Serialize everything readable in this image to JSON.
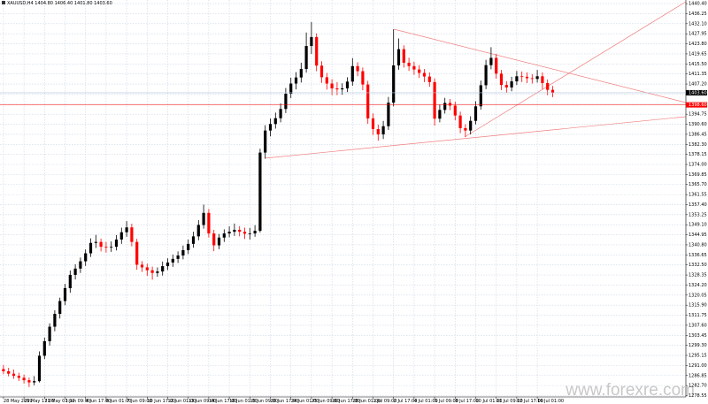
{
  "header": "XAUUSD,H4 1404.80 1406.40 1401.80 1403.60",
  "watermark": "www.forexre.com",
  "chart_data": {
    "type": "candlestick",
    "up_color": "#000000",
    "down_color": "#ff0000",
    "grid": true,
    "ylim": [
      1278.0,
      1441.9
    ],
    "yticks": [
      {
        "value": 1440.4,
        "label": "1440.40"
      },
      1436.25,
      {
        "value": 1432.1,
        "label": "1432.10"
      },
      1427.95,
      {
        "value": 1423.8,
        "label": "1423.80"
      },
      1419.65,
      {
        "value": 1415.5,
        "label": "1415.50"
      },
      1411.35,
      {
        "value": 1407.2,
        "label": "1407.20"
      },
      1403.05,
      {
        "value": 1398.9,
        "label": "1398.90"
      },
      1394.75,
      {
        "value": 1390.6,
        "label": "1390.60"
      },
      1386.45,
      {
        "value": 1382.3,
        "label": "1382.30"
      },
      1378.15,
      {
        "value": 1374,
        "label": "1374.00"
      },
      1369.85,
      {
        "value": 1365.7,
        "label": "1365.70"
      },
      1361.55,
      {
        "value": 1357.4,
        "label": "1357.40"
      },
      1353.25,
      {
        "value": 1349.1,
        "label": "1349.10"
      },
      1344.95,
      {
        "value": 1340.8,
        "label": "1340.80"
      },
      1336.65,
      {
        "value": 1332.5,
        "label": "1332.50"
      },
      1328.35,
      {
        "value": 1324.2,
        "label": "1324.20"
      },
      1320.05,
      {
        "value": 1315.9,
        "label": "1315.90"
      },
      1311.75,
      {
        "value": 1307.6,
        "label": "1307.60"
      },
      1303.45,
      {
        "value": 1299.3,
        "label": "1299.30"
      },
      1295.15,
      {
        "value": 1291,
        "label": "1291.00"
      },
      1286.85,
      {
        "value": 1282.7,
        "label": "1282.70"
      },
      1278.55
    ],
    "current_price": {
      "value": 1403.6,
      "label": "1403.60"
    },
    "level": {
      "value": 1398.6,
      "label": "1398.60"
    },
    "categories": [
      "28 May 2019",
      null,
      null,
      null,
      "29 May 17:00",
      null,
      null,
      null,
      "31 May 01:00",
      null,
      null,
      null,
      "3 Jun 09:00",
      null,
      null,
      null,
      "4 Jun 17:00",
      null,
      null,
      null,
      "6 Jun 01:00",
      null,
      null,
      null,
      "7 Jun 09:00",
      null,
      null,
      null,
      "10 Jun 17:00",
      null,
      null,
      null,
      "12 Jun 01:00",
      null,
      null,
      null,
      "13 Jun 09:00",
      null,
      null,
      null,
      "14 Jun 17:00",
      null,
      null,
      null,
      "18 Jun 01:00",
      null,
      null,
      null,
      "19 Jun 09:00",
      null,
      null,
      null,
      "20 Jun 17:00",
      null,
      null,
      null,
      "24 Jun 01:00",
      null,
      null,
      null,
      "25 Jun 09:00",
      null,
      null,
      null,
      "26 Jun 17:00",
      null,
      null,
      null,
      "28 Jun 01:00",
      null,
      null,
      null,
      "1 Jul 09:00",
      null,
      null,
      null,
      "2 Jul 17:00",
      null,
      null,
      null,
      "4 Jul 01:00",
      null,
      null,
      null,
      "5 Jul 09:00",
      null,
      null,
      null,
      "8 Jul 17:00",
      null,
      null,
      null,
      "10 Jul 01:00",
      null,
      null,
      null,
      "11 Jul 09:00",
      null,
      null,
      null,
      "12 Jul 17:00",
      null,
      null,
      null,
      "16 Jul 01:00",
      null,
      null,
      null
    ],
    "ohlc": [
      [
        1289.5,
        1291.2,
        1287.4,
        1288.6
      ],
      [
        1288.6,
        1290.0,
        1286.5,
        1287.6
      ],
      [
        1287.6,
        1289.3,
        1285.5,
        1286.7
      ],
      [
        1286.7,
        1288.0,
        1284.6,
        1285.9
      ],
      [
        1285.9,
        1287.2,
        1283.5,
        1284.9
      ],
      [
        1284.9,
        1286.0,
        1282.1,
        1284.0
      ],
      [
        1284.0,
        1286.6,
        1282.8,
        1284.5
      ],
      [
        1284.5,
        1296.8,
        1284.0,
        1295.0
      ],
      [
        1295.0,
        1302.5,
        1293.6,
        1301.0
      ],
      [
        1301.0,
        1308.4,
        1299.2,
        1307.0
      ],
      [
        1307.0,
        1313.8,
        1305.1,
        1312.3
      ],
      [
        1312.3,
        1319.0,
        1310.4,
        1317.6
      ],
      [
        1317.6,
        1324.7,
        1315.9,
        1322.9
      ],
      [
        1322.9,
        1330.2,
        1321.0,
        1328.4
      ],
      [
        1328.4,
        1332.8,
        1326.5,
        1331.0
      ],
      [
        1331.0,
        1335.6,
        1329.2,
        1334.0
      ],
      [
        1334.0,
        1338.9,
        1332.1,
        1337.3
      ],
      [
        1337.3,
        1343.5,
        1335.8,
        1341.6
      ],
      [
        1341.6,
        1344.9,
        1339.5,
        1342.0
      ],
      [
        1342.0,
        1343.4,
        1338.1,
        1340.0
      ],
      [
        1340.0,
        1342.0,
        1337.6,
        1339.7
      ],
      [
        1339.7,
        1342.2,
        1337.9,
        1340.0
      ],
      [
        1340.0,
        1344.8,
        1338.5,
        1343.0
      ],
      [
        1343.0,
        1347.9,
        1341.2,
        1346.0
      ],
      [
        1346.0,
        1350.6,
        1344.1,
        1348.0
      ],
      [
        1348.0,
        1349.5,
        1340.2,
        1342.0
      ],
      [
        1342.0,
        1343.3,
        1330.5,
        1332.6
      ],
      [
        1332.6,
        1334.1,
        1329.6,
        1331.5
      ],
      [
        1331.5,
        1333.0,
        1328.0,
        1330.3
      ],
      [
        1330.3,
        1331.8,
        1326.4,
        1329.2
      ],
      [
        1329.2,
        1331.5,
        1327.6,
        1329.8
      ],
      [
        1329.8,
        1333.9,
        1328.1,
        1332.0
      ],
      [
        1332.0,
        1335.2,
        1330.4,
        1333.5
      ],
      [
        1333.5,
        1336.8,
        1331.7,
        1335.0
      ],
      [
        1335.0,
        1338.1,
        1333.3,
        1336.4
      ],
      [
        1336.4,
        1340.5,
        1334.8,
        1338.6
      ],
      [
        1338.6,
        1343.0,
        1337.0,
        1341.2
      ],
      [
        1341.2,
        1346.2,
        1339.6,
        1344.3
      ],
      [
        1344.3,
        1351.0,
        1342.7,
        1349.0
      ],
      [
        1349.0,
        1357.4,
        1347.5,
        1354.0
      ],
      [
        1354.0,
        1355.6,
        1343.8,
        1345.5
      ],
      [
        1345.5,
        1347.0,
        1338.2,
        1340.6
      ],
      [
        1340.6,
        1345.3,
        1339.0,
        1343.8
      ],
      [
        1343.8,
        1347.2,
        1342.0,
        1345.5
      ],
      [
        1345.5,
        1348.4,
        1343.9,
        1346.2
      ],
      [
        1346.2,
        1349.6,
        1344.5,
        1347.0
      ],
      [
        1347.0,
        1348.5,
        1344.3,
        1346.2
      ],
      [
        1346.2,
        1347.9,
        1343.2,
        1345.4
      ],
      [
        1345.4,
        1347.8,
        1343.0,
        1345.5
      ],
      [
        1345.5,
        1348.9,
        1344.1,
        1346.6
      ],
      [
        1346.6,
        1380.5,
        1345.9,
        1378.9
      ],
      [
        1378.9,
        1390.2,
        1376.4,
        1388.0
      ],
      [
        1388.0,
        1393.0,
        1385.6,
        1390.7
      ],
      [
        1390.7,
        1395.4,
        1388.8,
        1393.1
      ],
      [
        1393.1,
        1399.2,
        1391.4,
        1396.9
      ],
      [
        1396.9,
        1405.6,
        1395.2,
        1403.2
      ],
      [
        1403.2,
        1409.8,
        1401.4,
        1407.4
      ],
      [
        1407.4,
        1412.1,
        1405.0,
        1409.9
      ],
      [
        1409.9,
        1416.0,
        1407.8,
        1413.4
      ],
      [
        1413.4,
        1428.5,
        1411.9,
        1422.9
      ],
      [
        1422.9,
        1432.8,
        1419.6,
        1426.6
      ],
      [
        1426.6,
        1428.1,
        1412.5,
        1414.8
      ],
      [
        1414.8,
        1416.6,
        1407.7,
        1410.0
      ],
      [
        1410.0,
        1411.8,
        1404.9,
        1407.4
      ],
      [
        1407.4,
        1409.2,
        1402.6,
        1405.4
      ],
      [
        1405.4,
        1408.0,
        1402.6,
        1405.0
      ],
      [
        1405.0,
        1407.5,
        1402.8,
        1405.4
      ],
      [
        1405.4,
        1410.0,
        1403.9,
        1408.2
      ],
      [
        1408.2,
        1417.9,
        1406.5,
        1414.6
      ],
      [
        1414.6,
        1416.2,
        1410.4,
        1412.5
      ],
      [
        1412.5,
        1414.0,
        1404.6,
        1407.0
      ],
      [
        1407.0,
        1408.5,
        1390.8,
        1393.0
      ],
      [
        1393.0,
        1395.1,
        1386.2,
        1388.6
      ],
      [
        1388.6,
        1390.4,
        1383.8,
        1386.4
      ],
      [
        1386.4,
        1392.0,
        1384.5,
        1389.8
      ],
      [
        1389.8,
        1401.9,
        1388.3,
        1399.5
      ],
      [
        1399.5,
        1429.8,
        1398.0,
        1414.9
      ],
      [
        1414.9,
        1426.0,
        1413.1,
        1421.6
      ],
      [
        1421.6,
        1423.2,
        1414.0,
        1416.0
      ],
      [
        1416.0,
        1418.1,
        1412.6,
        1414.6
      ],
      [
        1414.6,
        1416.4,
        1411.0,
        1413.2
      ],
      [
        1413.2,
        1415.0,
        1409.7,
        1411.8
      ],
      [
        1411.8,
        1413.4,
        1408.0,
        1410.3
      ],
      [
        1410.3,
        1412.0,
        1406.1,
        1408.0
      ],
      [
        1408.0,
        1409.5,
        1390.0,
        1392.9
      ],
      [
        1392.9,
        1398.8,
        1391.4,
        1396.5
      ],
      [
        1396.5,
        1401.5,
        1395.0,
        1399.4
      ],
      [
        1399.4,
        1401.0,
        1396.4,
        1398.3
      ],
      [
        1398.3,
        1399.9,
        1392.2,
        1394.2
      ],
      [
        1394.2,
        1395.8,
        1386.9,
        1389.0
      ],
      [
        1389.0,
        1390.6,
        1385.3,
        1388.0
      ],
      [
        1388.0,
        1393.9,
        1386.4,
        1392.0
      ],
      [
        1392.0,
        1400.1,
        1390.5,
        1398.0
      ],
      [
        1398.0,
        1408.6,
        1396.6,
        1406.7
      ],
      [
        1406.7,
        1417.2,
        1405.1,
        1415.0
      ],
      [
        1415.0,
        1422.4,
        1413.3,
        1418.0
      ],
      [
        1418.0,
        1419.6,
        1409.4,
        1411.5
      ],
      [
        1411.5,
        1413.0,
        1404.7,
        1406.8
      ],
      [
        1406.8,
        1408.4,
        1403.6,
        1405.8
      ],
      [
        1405.8,
        1410.2,
        1404.2,
        1408.3
      ],
      [
        1408.3,
        1412.6,
        1406.8,
        1410.4
      ],
      [
        1410.4,
        1412.4,
        1408.0,
        1410.2
      ],
      [
        1410.2,
        1412.0,
        1407.6,
        1409.6
      ],
      [
        1409.6,
        1411.3,
        1407.4,
        1409.3
      ],
      [
        1409.3,
        1413.0,
        1407.8,
        1410.4
      ],
      [
        1410.4,
        1412.0,
        1405.1,
        1407.6
      ],
      [
        1407.6,
        1409.1,
        1402.6,
        1404.8
      ],
      [
        1404.8,
        1406.4,
        1401.8,
        1403.6
      ]
    ]
  }
}
